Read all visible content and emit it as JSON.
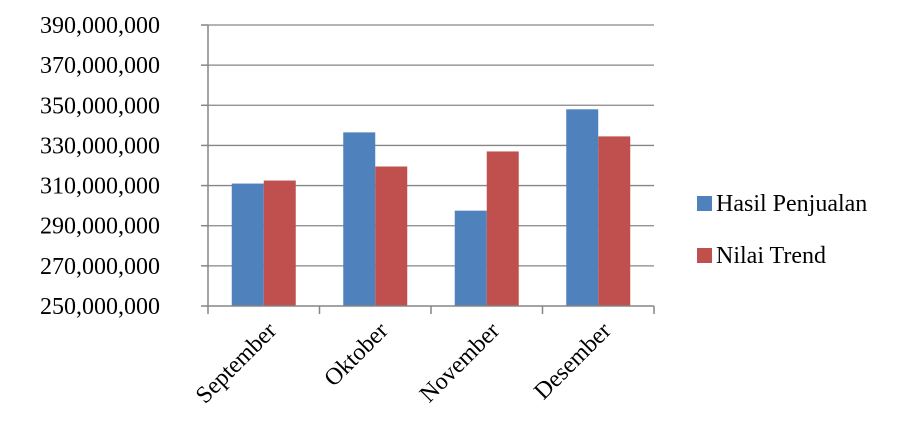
{
  "chart_data": {
    "type": "bar",
    "categories": [
      "September",
      "Oktober",
      "November",
      "Desember"
    ],
    "series": [
      {
        "name": "Hasil Penjualan",
        "color": "#4F81BD",
        "values": [
          311000000,
          336500000,
          297500000,
          348000000
        ]
      },
      {
        "name": "Nilai Trend",
        "color": "#C0504D",
        "values": [
          312500000,
          319500000,
          327000000,
          334500000
        ]
      }
    ],
    "ylim": [
      250000000,
      390000000
    ],
    "yticks": [
      250000000,
      270000000,
      290000000,
      310000000,
      330000000,
      350000000,
      370000000,
      390000000
    ],
    "ytick_labels": [
      "250,000,000",
      "270,000,000",
      "290,000,000",
      "310,000,000",
      "330,000,000",
      "350,000,000",
      "370,000,000",
      "390,000,000"
    ],
    "grid": true,
    "legend_position": "right",
    "title": "",
    "xlabel": "",
    "ylabel": ""
  }
}
